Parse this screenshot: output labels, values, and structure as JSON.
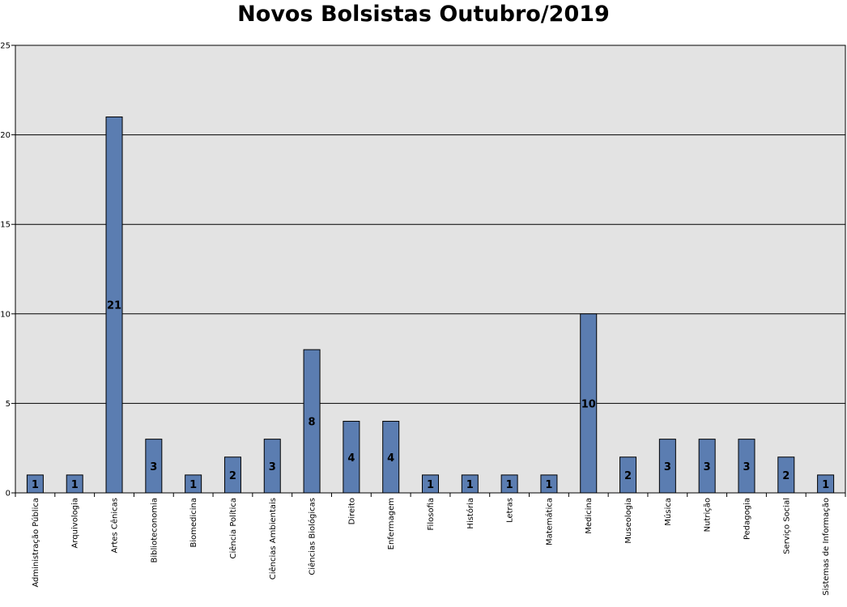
{
  "chart_data": {
    "type": "bar",
    "title": "Novos Bolsistas Outubro/2019",
    "xlabel": "",
    "ylabel": "",
    "ylim": [
      0,
      25
    ],
    "yticks": [
      0,
      5,
      10,
      15,
      20,
      25
    ],
    "grid": true,
    "legend": "none",
    "bar_color": "#5b7db1",
    "plot_background": "#e3e3e3",
    "categories": [
      "Administração Pública",
      "Arquivologia",
      "Artes Cênicas",
      "Biblioteconomia",
      "Biomedicina",
      "Ciência Política",
      "Ciências Ambientais",
      "Ciências Biológicas",
      "Direito",
      "Enfermagem",
      "Filosofia",
      "História",
      "Letras",
      "Matemática",
      "Medicina",
      "Museologia",
      "Música",
      "Nutrição",
      "Pedagogia",
      "Serviço Social",
      "Sistemas de Informação"
    ],
    "values": [
      1,
      1,
      21,
      3,
      1,
      2,
      3,
      8,
      4,
      4,
      1,
      1,
      1,
      1,
      10,
      2,
      3,
      3,
      3,
      2,
      1
    ]
  }
}
